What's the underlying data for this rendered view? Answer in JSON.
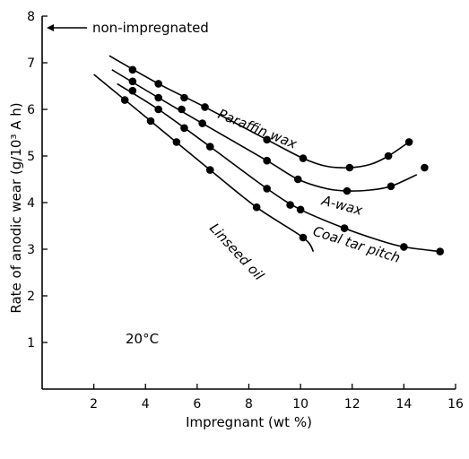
{
  "chart_data": {
    "type": "line",
    "xlabel": "Impregnant (wt %)",
    "ylabel": "Rate of anodic wear (g/10³ A h)",
    "xlim": [
      0,
      16
    ],
    "ylim": [
      0,
      8
    ],
    "xticks": [
      2,
      4,
      6,
      8,
      10,
      12,
      14,
      16
    ],
    "yticks": [
      1,
      2,
      3,
      4,
      5,
      6,
      7,
      8
    ],
    "grid": false,
    "annotations": [
      {
        "text": "non-impregnated",
        "y": 7.75,
        "arrow": "left"
      },
      {
        "text": "20°C"
      }
    ],
    "series": [
      {
        "name": "Paraffin wax",
        "points": [
          [
            3.5,
            6.85
          ],
          [
            4.5,
            6.55
          ],
          [
            5.5,
            6.25
          ],
          [
            6.3,
            6.05
          ],
          [
            8.7,
            5.35
          ],
          [
            10.1,
            4.95
          ],
          [
            11.9,
            4.75
          ],
          [
            13.4,
            5.0
          ],
          [
            14.2,
            5.3
          ]
        ],
        "curve": [
          [
            2.6,
            7.15
          ],
          [
            4.5,
            6.55
          ],
          [
            6.3,
            6.05
          ],
          [
            8.7,
            5.35
          ],
          [
            10.1,
            4.95
          ],
          [
            11.0,
            4.78
          ],
          [
            11.9,
            4.75
          ],
          [
            12.7,
            4.82
          ],
          [
            13.4,
            5.0
          ],
          [
            14.2,
            5.3
          ]
        ]
      },
      {
        "name": "A-wax",
        "points": [
          [
            3.5,
            6.6
          ],
          [
            4.5,
            6.25
          ],
          [
            5.4,
            6.0
          ],
          [
            6.2,
            5.7
          ],
          [
            8.7,
            4.9
          ],
          [
            9.9,
            4.5
          ],
          [
            11.8,
            4.25
          ],
          [
            13.5,
            4.35
          ],
          [
            14.8,
            4.75
          ]
        ],
        "curve": [
          [
            2.7,
            6.85
          ],
          [
            4.5,
            6.25
          ],
          [
            6.2,
            5.7
          ],
          [
            8.7,
            4.9
          ],
          [
            9.9,
            4.5
          ],
          [
            11.0,
            4.3
          ],
          [
            11.8,
            4.25
          ],
          [
            12.7,
            4.27
          ],
          [
            13.5,
            4.35
          ],
          [
            14.5,
            4.6
          ]
        ]
      },
      {
        "name": "Coal tar pitch",
        "points": [
          [
            3.5,
            6.4
          ],
          [
            4.5,
            6.0
          ],
          [
            5.5,
            5.6
          ],
          [
            6.5,
            5.2
          ],
          [
            8.7,
            4.3
          ],
          [
            9.6,
            3.95
          ],
          [
            10.0,
            3.85
          ],
          [
            11.7,
            3.45
          ],
          [
            14.0,
            3.05
          ],
          [
            15.4,
            2.95
          ]
        ],
        "curve": [
          [
            2.9,
            6.55
          ],
          [
            4.5,
            6.0
          ],
          [
            6.5,
            5.2
          ],
          [
            8.7,
            4.3
          ],
          [
            10.0,
            3.85
          ],
          [
            11.7,
            3.45
          ],
          [
            13.0,
            3.2
          ],
          [
            14.0,
            3.05
          ],
          [
            15.4,
            2.95
          ]
        ]
      },
      {
        "name": "Linseed oil",
        "points": [
          [
            3.2,
            6.2
          ],
          [
            4.2,
            5.75
          ],
          [
            5.2,
            5.3
          ],
          [
            6.5,
            4.7
          ],
          [
            8.3,
            3.9
          ],
          [
            10.1,
            3.25
          ]
        ],
        "curve": [
          [
            2.0,
            6.75
          ],
          [
            4.2,
            5.75
          ],
          [
            6.5,
            4.7
          ],
          [
            8.3,
            3.9
          ],
          [
            10.1,
            3.25
          ],
          [
            10.5,
            2.95
          ]
        ]
      }
    ]
  }
}
